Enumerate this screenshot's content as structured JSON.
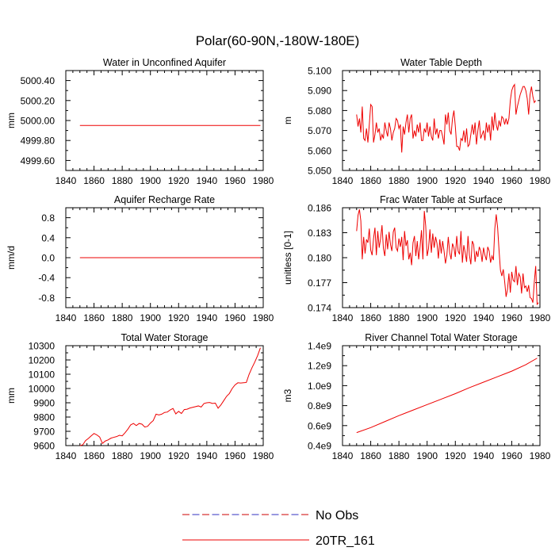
{
  "figure": {
    "title": "Polar(60-90N,-180W-180E)"
  },
  "legend": {
    "entries": [
      {
        "label": "No Obs",
        "style": "dashed",
        "colors": [
          "#cc0000",
          "#3030c0"
        ]
      },
      {
        "label": "20TR_161",
        "style": "solid",
        "color": "#ee0000"
      }
    ]
  },
  "chart_data": [
    {
      "id": "p1",
      "type": "line",
      "title": "Water in Unconfined Aquifer",
      "ylabel": "mm",
      "xlim": [
        1840,
        1980
      ],
      "ylim": [
        4999.5,
        5000.5
      ],
      "xticks": [
        1840,
        1860,
        1880,
        1900,
        1920,
        1940,
        1960,
        1980
      ],
      "yticks": [
        4999.6,
        4999.8,
        5000.0,
        5000.2,
        5000.4
      ],
      "yticklabels": [
        "4999.60",
        "4999.80",
        "5000.00",
        "5000.20",
        "5000.40"
      ],
      "series": [
        {
          "name": "20TR_161",
          "color": "#ee0000",
          "x": [
            1850,
            1978
          ],
          "values": [
            4999.95,
            4999.95
          ]
        }
      ]
    },
    {
      "id": "p2",
      "type": "line",
      "title": "Water Table Depth",
      "ylabel": "m",
      "xlim": [
        1840,
        1980
      ],
      "ylim": [
        5.05,
        5.1
      ],
      "xticks": [
        1840,
        1860,
        1880,
        1900,
        1920,
        1940,
        1960,
        1980
      ],
      "yticks": [
        5.05,
        5.06,
        5.07,
        5.08,
        5.09,
        5.1
      ],
      "yticklabels": [
        "5.050",
        "5.060",
        "5.070",
        "5.080",
        "5.090",
        "5.100"
      ],
      "series": [
        {
          "name": "20TR_161",
          "color": "#ee0000",
          "x_start": 1850,
          "x_step": 1,
          "values": [
            5.078,
            5.072,
            5.076,
            5.069,
            5.082,
            5.066,
            5.065,
            5.071,
            5.064,
            5.073,
            5.083,
            5.082,
            5.064,
            5.068,
            5.074,
            5.069,
            5.071,
            5.065,
            5.068,
            5.066,
            5.074,
            5.07,
            5.067,
            5.074,
            5.071,
            5.065,
            5.069,
            5.071,
            5.076,
            5.075,
            5.071,
            5.073,
            5.059,
            5.072,
            5.068,
            5.074,
            5.078,
            5.069,
            5.076,
            5.078,
            5.066,
            5.07,
            5.067,
            5.073,
            5.069,
            5.074,
            5.065,
            5.065,
            5.071,
            5.069,
            5.074,
            5.067,
            5.072,
            5.067,
            5.065,
            5.076,
            5.068,
            5.071,
            5.066,
            5.07,
            5.07,
            5.067,
            5.063,
            5.078,
            5.073,
            5.079,
            5.07,
            5.068,
            5.076,
            5.08,
            5.072,
            5.062,
            5.062,
            5.06,
            5.066,
            5.065,
            5.07,
            5.064,
            5.071,
            5.062,
            5.063,
            5.068,
            5.073,
            5.068,
            5.074,
            5.063,
            5.07,
            5.075,
            5.066,
            5.068,
            5.07,
            5.065,
            5.074,
            5.069,
            5.073,
            5.065,
            5.077,
            5.07,
            5.079,
            5.073,
            5.07,
            5.075,
            5.072,
            5.077,
            5.076,
            5.073,
            5.076,
            5.073,
            5.076,
            5.085,
            5.09,
            5.092,
            5.093,
            5.078,
            5.082,
            5.085,
            5.088,
            5.09,
            5.092,
            5.092,
            5.09,
            5.086,
            5.078,
            5.088,
            5.092,
            5.087,
            5.084,
            5.085
          ]
        }
      ]
    },
    {
      "id": "p3",
      "type": "line",
      "title": "Aquifer Recharge Rate",
      "ylabel": "mm/d",
      "xlim": [
        1840,
        1980
      ],
      "ylim": [
        -1.0,
        1.0
      ],
      "xticks": [
        1840,
        1860,
        1880,
        1900,
        1920,
        1940,
        1960,
        1980
      ],
      "yticks": [
        -0.8,
        -0.4,
        0.0,
        0.4,
        0.8
      ],
      "yticklabels": [
        "-0.8",
        "-0.4",
        "0.0",
        "0.4",
        "0.8"
      ],
      "series": [
        {
          "name": "20TR_161",
          "color": "#ee0000",
          "x": [
            1850,
            1978
          ],
          "values": [
            0.0,
            0.0
          ]
        }
      ]
    },
    {
      "id": "p4",
      "type": "line",
      "title": "Frac Water Table at Surface",
      "ylabel": "unitless [0-1]",
      "xlim": [
        1840,
        1980
      ],
      "ylim": [
        0.174,
        0.186
      ],
      "xticks": [
        1840,
        1860,
        1880,
        1900,
        1920,
        1940,
        1960,
        1980
      ],
      "yticks": [
        0.174,
        0.177,
        0.18,
        0.183,
        0.186
      ],
      "yticklabels": [
        "0.174",
        "0.177",
        "0.180",
        "0.183",
        "0.186"
      ],
      "series": [
        {
          "name": "20TR_161",
          "color": "#ee0000",
          "x_start": 1850,
          "x_step": 1,
          "values": [
            0.1832,
            0.1851,
            0.1858,
            0.1844,
            0.1798,
            0.1825,
            0.1805,
            0.1822,
            0.1818,
            0.1835,
            0.1809,
            0.1803,
            0.1823,
            0.1836,
            0.1803,
            0.1832,
            0.1812,
            0.1823,
            0.1839,
            0.1811,
            0.1802,
            0.1828,
            0.181,
            0.1831,
            0.1816,
            0.1808,
            0.1831,
            0.1836,
            0.1812,
            0.1808,
            0.1823,
            0.1813,
            0.1825,
            0.1797,
            0.1832,
            0.1814,
            0.1821,
            0.1798,
            0.1806,
            0.1791,
            0.1818,
            0.1826,
            0.1802,
            0.182,
            0.1798,
            0.1813,
            0.1833,
            0.1798,
            0.1856,
            0.1838,
            0.1802,
            0.1811,
            0.1834,
            0.1806,
            0.1829,
            0.1812,
            0.1825,
            0.1817,
            0.1799,
            0.1822,
            0.1805,
            0.182,
            0.1808,
            0.1793,
            0.1803,
            0.1825,
            0.1806,
            0.1798,
            0.1817,
            0.1812,
            0.1801,
            0.1826,
            0.1808,
            0.1804,
            0.1832,
            0.1794,
            0.1815,
            0.1806,
            0.1795,
            0.1826,
            0.1803,
            0.1792,
            0.182,
            0.1816,
            0.1795,
            0.1808,
            0.1801,
            0.1813,
            0.1808,
            0.1795,
            0.1812,
            0.1803,
            0.1797,
            0.1813,
            0.1808,
            0.1794,
            0.1802,
            0.1797,
            0.1835,
            0.1852,
            0.1836,
            0.1809,
            0.1785,
            0.1778,
            0.1786,
            0.1771,
            0.1753,
            0.1762,
            0.1781,
            0.1758,
            0.1783,
            0.1773,
            0.1771,
            0.179,
            0.1767,
            0.1781,
            0.1777,
            0.1757,
            0.1781,
            0.1764,
            0.1766,
            0.1759,
            0.1767,
            0.1752,
            0.1751,
            0.1746,
            0.1771,
            0.179,
            0.1744,
            0.1746
          ]
        }
      ]
    },
    {
      "id": "p5",
      "type": "line",
      "title": "Total Water Storage",
      "ylabel": "mm",
      "xlim": [
        1840,
        1980
      ],
      "ylim": [
        9600,
        10300
      ],
      "xticks": [
        1840,
        1860,
        1880,
        1900,
        1920,
        1940,
        1960,
        1980
      ],
      "yticks": [
        9600,
        9700,
        9800,
        9900,
        10000,
        10100,
        10200,
        10300
      ],
      "yticklabels": [
        "9600",
        "9700",
        "9800",
        "9900",
        "10000",
        "10100",
        "10200",
        "10300"
      ],
      "series": [
        {
          "name": "20TR_161",
          "color": "#ee0000",
          "x": [
            1850,
            1852,
            1854,
            1856,
            1858,
            1860,
            1862,
            1864,
            1866,
            1868,
            1870,
            1872,
            1874,
            1876,
            1878,
            1880,
            1882,
            1884,
            1886,
            1888,
            1890,
            1892,
            1894,
            1896,
            1898,
            1900,
            1902,
            1904,
            1906,
            1908,
            1910,
            1912,
            1914,
            1916,
            1918,
            1920,
            1922,
            1924,
            1926,
            1928,
            1930,
            1932,
            1934,
            1936,
            1938,
            1940,
            1942,
            1944,
            1946,
            1948,
            1950,
            1952,
            1954,
            1956,
            1958,
            1960,
            1962,
            1964,
            1966,
            1968,
            1970,
            1972,
            1974,
            1976,
            1978
          ],
          "values": [
            9600,
            9605,
            9635,
            9650,
            9668,
            9685,
            9675,
            9660,
            9615,
            9632,
            9640,
            9652,
            9658,
            9663,
            9672,
            9668,
            9690,
            9715,
            9745,
            9755,
            9740,
            9755,
            9750,
            9730,
            9735,
            9758,
            9775,
            9820,
            9815,
            9820,
            9832,
            9835,
            9850,
            9860,
            9822,
            9840,
            9825,
            9852,
            9855,
            9863,
            9868,
            9873,
            9878,
            9870,
            9895,
            9900,
            9902,
            9895,
            9898,
            9862,
            9885,
            9915,
            9945,
            9965,
            10000,
            10025,
            10040,
            10038,
            10040,
            10042,
            10100,
            10145,
            10185,
            10230,
            10285
          ]
        }
      ]
    },
    {
      "id": "p6",
      "type": "line",
      "title": "River Channel Total Water Storage",
      "ylabel": "m3",
      "xlim": [
        1840,
        1980
      ],
      "ylim": [
        400000000,
        1400000000
      ],
      "xticks": [
        1840,
        1860,
        1880,
        1900,
        1920,
        1940,
        1960,
        1980
      ],
      "yticks": [
        400000000,
        600000000,
        800000000,
        1000000000,
        1200000000,
        1400000000
      ],
      "yticklabels": [
        "0.4e9",
        "0.6e9",
        "0.8e9",
        "1.0e9",
        "1.2e9",
        "1.4e9"
      ],
      "series": [
        {
          "name": "20TR_161",
          "color": "#ee0000",
          "x": [
            1850,
            1860,
            1870,
            1880,
            1890,
            1900,
            1910,
            1920,
            1930,
            1940,
            1950,
            1960,
            1970,
            1978
          ],
          "values": [
            530000000,
            580000000,
            640000000,
            700000000,
            755000000,
            810000000,
            865000000,
            920000000,
            980000000,
            1035000000,
            1090000000,
            1145000000,
            1210000000,
            1275000000
          ]
        }
      ]
    }
  ]
}
